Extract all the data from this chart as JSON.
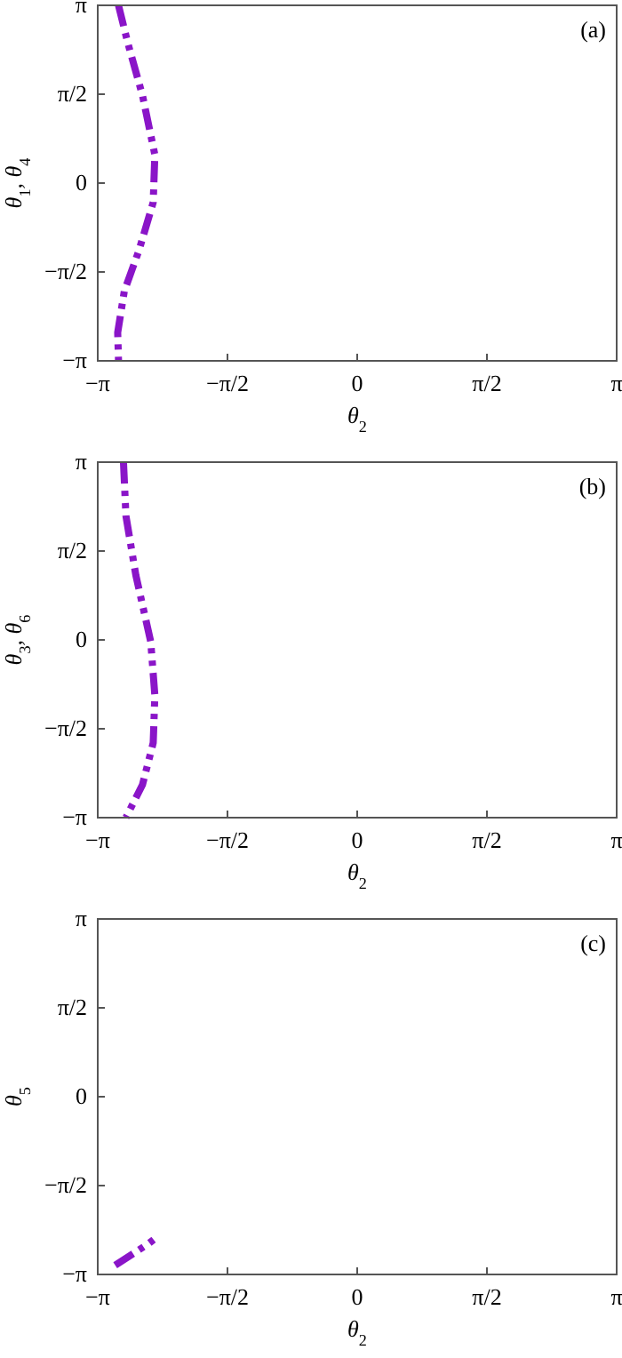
{
  "chart_data": [
    {
      "type": "line",
      "xlabel": "θ$_{2}$",
      "ylabel": "θ$_{1}$, θ$_{4}$",
      "annotations": [
        "(a)"
      ],
      "line_style": "dashed",
      "grid": false,
      "xlim": [
        -3.14159,
        3.14159
      ],
      "ylim": [
        -3.14159,
        3.14159
      ],
      "xticks": [
        {
          "value": -3.14159,
          "label": "−π"
        },
        {
          "value": -1.5708,
          "label": "−π/2"
        },
        {
          "value": 0,
          "label": "0"
        },
        {
          "value": 1.5708,
          "label": "π/2"
        },
        {
          "value": 3.14159,
          "label": "π"
        }
      ],
      "yticks": [
        {
          "value": -3.14159,
          "label": "−π"
        },
        {
          "value": -1.5708,
          "label": "−π/2"
        },
        {
          "value": 0,
          "label": "0"
        },
        {
          "value": 1.5708,
          "label": "π/2"
        },
        {
          "value": 3.14159,
          "label": "π"
        }
      ],
      "series": [
        {
          "color": "#8a15c8",
          "x": [
            -2.89,
            -2.78,
            -2.6,
            -2.45,
            -2.47,
            -2.64,
            -2.82,
            -2.9,
            -2.89
          ],
          "values": [
            3.14,
            2.49,
            1.55,
            0.5,
            -0.34,
            -1.18,
            -1.91,
            -2.64,
            -3.14
          ]
        }
      ]
    },
    {
      "type": "line",
      "xlabel": "θ$_{2}$",
      "ylabel": "θ$_{3}$, θ$_{6}$",
      "annotations": [
        "(b)"
      ],
      "line_style": "dashed",
      "grid": false,
      "xlim": [
        -3.14159,
        3.14159
      ],
      "ylim": [
        -3.14159,
        3.14159
      ],
      "xticks": [
        {
          "value": -3.14159,
          "label": "−π"
        },
        {
          "value": -1.5708,
          "label": "−π/2"
        },
        {
          "value": 0,
          "label": "0"
        },
        {
          "value": 1.5708,
          "label": "π/2"
        },
        {
          "value": 3.14159,
          "label": "π"
        }
      ],
      "yticks": [
        {
          "value": -3.14159,
          "label": "−π"
        },
        {
          "value": -1.5708,
          "label": "−π/2"
        },
        {
          "value": 0,
          "label": "0"
        },
        {
          "value": 1.5708,
          "label": "π/2"
        },
        {
          "value": 3.14159,
          "label": "π"
        }
      ],
      "series": [
        {
          "color": "#8a15c8",
          "x": [
            -2.83,
            -2.8,
            -2.68,
            -2.5,
            -2.45,
            -2.47,
            -2.6,
            -2.8
          ],
          "values": [
            3.14,
            2.19,
            1.14,
            -0.03,
            -0.98,
            -1.82,
            -2.56,
            -3.14
          ]
        }
      ]
    },
    {
      "type": "line",
      "xlabel": "θ$_{2}$",
      "ylabel": "θ$_{5}$",
      "annotations": [
        "(c)"
      ],
      "line_style": "dashed",
      "grid": false,
      "xlim": [
        -3.14159,
        3.14159
      ],
      "ylim": [
        -3.14159,
        3.14159
      ],
      "xticks": [
        {
          "value": -3.14159,
          "label": "−π"
        },
        {
          "value": -1.5708,
          "label": "−π/2"
        },
        {
          "value": 0,
          "label": "0"
        },
        {
          "value": 1.5708,
          "label": "π/2"
        },
        {
          "value": 3.14159,
          "label": "π"
        }
      ],
      "yticks": [
        {
          "value": -3.14159,
          "label": "−π"
        },
        {
          "value": -1.5708,
          "label": "−π/2"
        },
        {
          "value": 0,
          "label": "0"
        },
        {
          "value": 1.5708,
          "label": "π/2"
        },
        {
          "value": 3.14159,
          "label": "π"
        }
      ],
      "series": [
        {
          "color": "#8a15c8",
          "x": [
            -2.93,
            -2.53,
            -2.45
          ],
          "values": [
            -2.98,
            -2.6,
            -2.51
          ]
        }
      ]
    }
  ]
}
